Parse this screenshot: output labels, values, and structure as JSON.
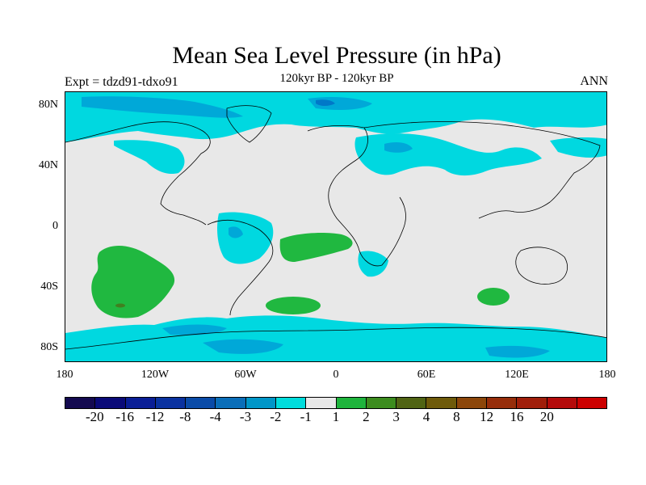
{
  "title": "Mean Sea Level Pressure (in hPa)",
  "subtitle": "120kyr BP - 120kyr BP",
  "left_label": "Expt = tdzd91-tdxo91",
  "right_label": "ANN",
  "lat_labels": [
    "80N",
    "40N",
    "0",
    "40S",
    "80S"
  ],
  "lon_labels": [
    "180",
    "120W",
    "60W",
    "0",
    "60E",
    "120E",
    "180"
  ],
  "colors": {
    "land_neutral": "#e8e8e8",
    "ocean_neg_1": "#00d8e0",
    "ocean_neg_2": "#00a8d8",
    "ocean_neg_3": "#0078c8",
    "pos_1": "#20b840",
    "pos_2": "#408020"
  },
  "colorbar": {
    "colors": [
      "#140a50",
      "#0a0a78",
      "#0a1e96",
      "#0a32a0",
      "#0a4ba8",
      "#0a6eb9",
      "#0096c8",
      "#00dcdc",
      "#e8e8e8",
      "#1eb43c",
      "#3c8c1e",
      "#506414",
      "#6e5a0a",
      "#8c460a",
      "#962d0a",
      "#a01e0a",
      "#b40a0a",
      "#cc0000"
    ],
    "labels": [
      "-20",
      "-16",
      "-12",
      "-8",
      "-4",
      "-3",
      "-2",
      "-1",
      "1",
      "2",
      "3",
      "4",
      "8",
      "12",
      "16",
      "20"
    ]
  }
}
